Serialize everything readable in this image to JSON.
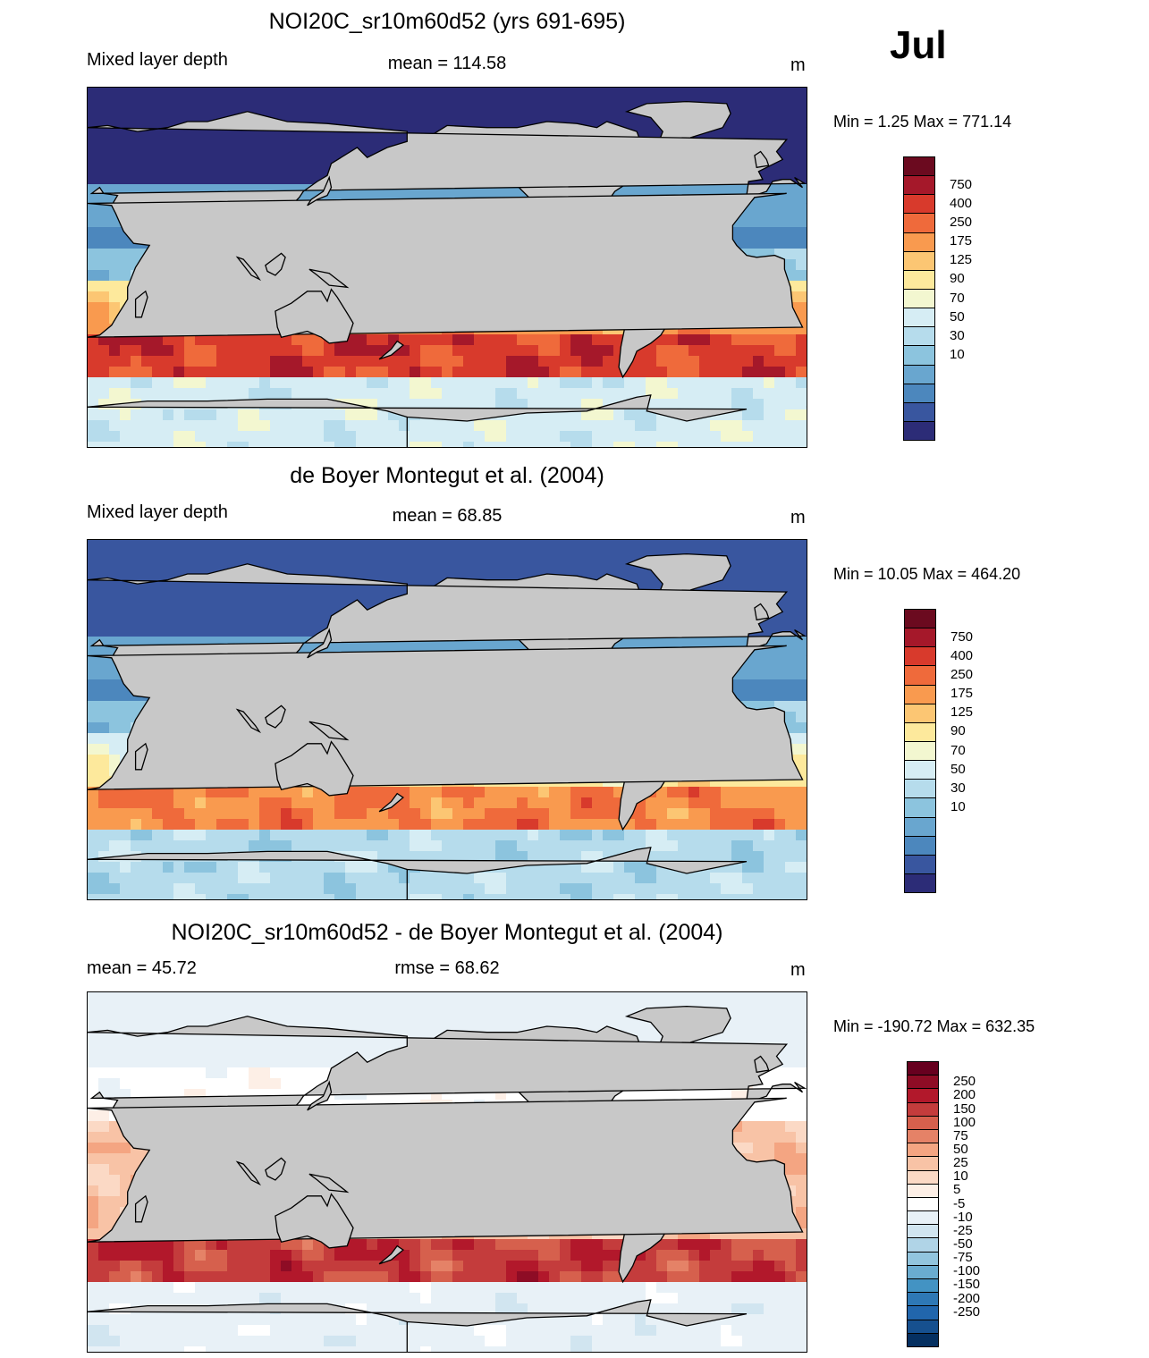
{
  "month": "Jul",
  "panels": [
    {
      "title": "NOI20C_sr10m60d52 (yrs 691-695)",
      "left_label": "Mixed layer depth",
      "center_label": "mean = 114.58",
      "units": "m",
      "minmax": "Min =    1.25 Max = 771.14",
      "colorbar": {
        "labels": [
          "750",
          "400",
          "250",
          "175",
          "125",
          "90",
          "70",
          "50",
          "30",
          "10"
        ],
        "colors": [
          "#6b0a1f",
          "#a5182a",
          "#d83a2c",
          "#ef6a3b",
          "#f99a4f",
          "#fcc673",
          "#fde99c",
          "#f3f7d0",
          "#d6edf4",
          "#b6dcec",
          "#8cc4de",
          "#69a6cf",
          "#4c87bd",
          "#39569f",
          "#2c2c77"
        ]
      },
      "mode": "model"
    },
    {
      "title": "de Boyer Montegut et al. (2004)",
      "left_label": "Mixed layer depth",
      "center_label": "mean =  68.85",
      "units": "m",
      "minmax": "Min =  10.05 Max = 464.20",
      "colorbar": {
        "labels": [
          "750",
          "400",
          "250",
          "175",
          "125",
          "90",
          "70",
          "50",
          "30",
          "10"
        ],
        "colors": [
          "#6b0a1f",
          "#a5182a",
          "#d83a2c",
          "#ef6a3b",
          "#f99a4f",
          "#fcc673",
          "#fde99c",
          "#f3f7d0",
          "#d6edf4",
          "#b6dcec",
          "#8cc4de",
          "#69a6cf",
          "#4c87bd",
          "#39569f",
          "#2c2c77"
        ]
      },
      "mode": "obs"
    },
    {
      "title": "NOI20C_sr10m60d52 - de Boyer Montegut et al. (2004)",
      "left_label": "mean =  45.72",
      "center_label": "rmse =  68.62",
      "units": "m",
      "minmax": "Min = -190.72 Max = 632.35",
      "colorbar": {
        "labels": [
          "250",
          "200",
          "150",
          "100",
          "75",
          "50",
          "25",
          "10",
          "5",
          "-5",
          "-10",
          "-25",
          "-50",
          "-75",
          "-100",
          "-150",
          "-200",
          "-250"
        ],
        "colors": [
          "#67001f",
          "#8e0c25",
          "#b2182b",
          "#c43c3c",
          "#d6604d",
          "#e58267",
          "#f4a582",
          "#f8c3a6",
          "#fbd9c5",
          "#fdefe6",
          "#ffffff",
          "#e8f1f7",
          "#d1e5f0",
          "#b0d4e7",
          "#92c5de",
          "#6aacd0",
          "#4393c3",
          "#2e78b5",
          "#2166ac",
          "#16508f",
          "#053061"
        ]
      },
      "mode": "diff"
    }
  ]
}
